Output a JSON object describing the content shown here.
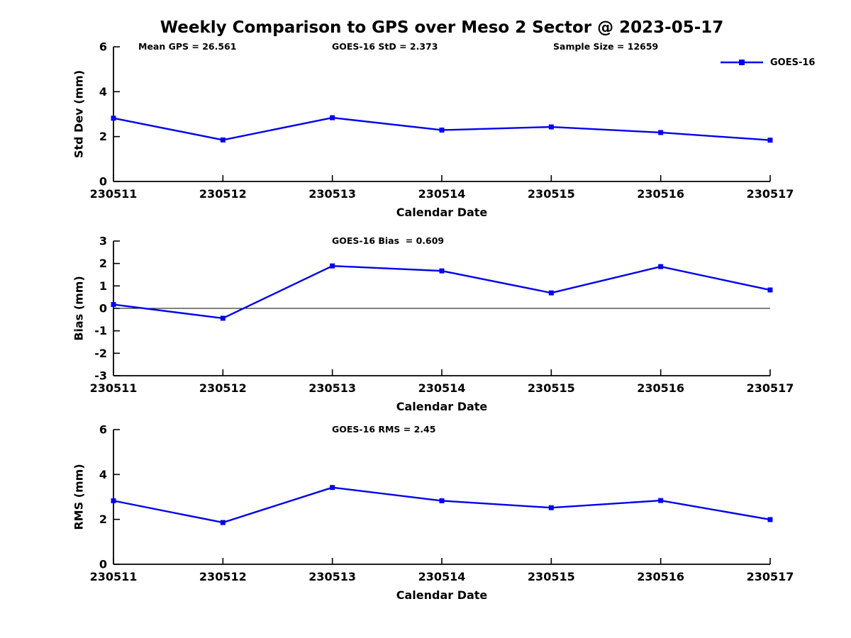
{
  "title": "Weekly Comparison to GPS over Meso 2 Sector @ 2023-05-17",
  "legend": {
    "label": "GOES-16"
  },
  "colors": {
    "series": "#0000EE",
    "axis": "#000000",
    "zero_line": "#000000"
  },
  "chart_data": [
    {
      "type": "line",
      "name": "std-dev-vs-date",
      "annotations": [
        "Mean GPS = 26.561",
        "GOES-16 StD = 2.373",
        "Sample Size = 12659"
      ],
      "xlabel": "Calendar Date",
      "ylabel": "Std Dev (mm)",
      "categories": [
        "230511",
        "230512",
        "230513",
        "230514",
        "230515",
        "230516",
        "230517"
      ],
      "ylim": [
        0,
        6
      ],
      "yticks": [
        0,
        2,
        4,
        6
      ],
      "grid": false,
      "zero_line": false,
      "legend_position": "top-right-outside",
      "series": [
        {
          "name": "GOES-16",
          "values": [
            2.82,
            1.85,
            2.84,
            2.29,
            2.43,
            2.18,
            1.84
          ]
        }
      ]
    },
    {
      "type": "line",
      "name": "bias-vs-date",
      "annotations": [
        "GOES-16 Bias  = 0.609"
      ],
      "xlabel": "Calendar Date",
      "ylabel": "Bias (mm)",
      "categories": [
        "230511",
        "230512",
        "230513",
        "230514",
        "230515",
        "230516",
        "230517"
      ],
      "ylim": [
        -3,
        3
      ],
      "yticks": [
        3,
        2,
        1,
        0,
        -1,
        -2,
        -3
      ],
      "grid": false,
      "zero_line": true,
      "series": [
        {
          "name": "GOES-16",
          "values": [
            0.17,
            -0.44,
            1.89,
            1.67,
            0.69,
            1.86,
            0.82
          ]
        }
      ]
    },
    {
      "type": "line",
      "name": "rms-vs-date",
      "annotations": [
        "GOES-16 RMS = 2.45"
      ],
      "xlabel": "Calendar Date",
      "ylabel": "RMS (mm)",
      "categories": [
        "230511",
        "230512",
        "230513",
        "230514",
        "230515",
        "230516",
        "230517"
      ],
      "ylim": [
        0,
        6
      ],
      "yticks": [
        0,
        2,
        4,
        6
      ],
      "grid": false,
      "zero_line": false,
      "series": [
        {
          "name": "GOES-16",
          "values": [
            2.83,
            1.86,
            3.42,
            2.83,
            2.52,
            2.84,
            1.99
          ]
        }
      ]
    }
  ]
}
